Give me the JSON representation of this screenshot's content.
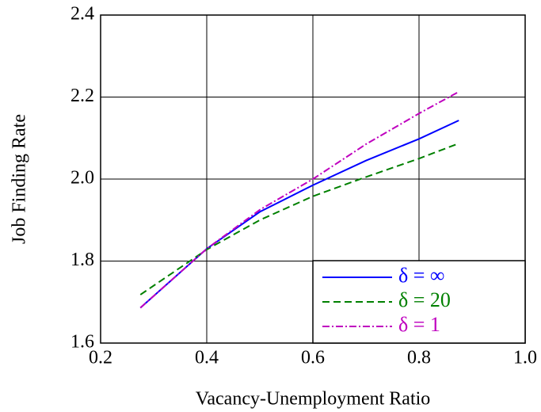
{
  "chart_data": {
    "type": "line",
    "xlabel": "Vacancy-Unemployment Ratio",
    "ylabel": "Job Finding Rate",
    "x": [
      0.275,
      0.4,
      0.5,
      0.6,
      0.7,
      0.8,
      0.875
    ],
    "series": [
      {
        "name": "δ = ∞",
        "color": "#0000ff",
        "linestyle": "solid",
        "values": [
          1.686,
          1.83,
          1.92,
          1.985,
          2.045,
          2.098,
          2.143
        ]
      },
      {
        "name": "δ = 20",
        "color": "#008000",
        "linestyle": "dashed",
        "values": [
          1.718,
          1.828,
          1.9,
          1.958,
          2.005,
          2.05,
          2.087
        ]
      },
      {
        "name": "δ = 1",
        "color": "#bf00bf",
        "linestyle": "dashdot",
        "values": [
          1.686,
          1.83,
          1.925,
          2.0,
          2.085,
          2.16,
          2.213
        ]
      }
    ],
    "xlim": [
      0.2,
      1.0
    ],
    "xticks": [
      0.2,
      0.4,
      0.6,
      0.8,
      {
        "value": 1.0,
        "label": "1.0"
      }
    ],
    "ylim": [
      1.6,
      2.4
    ],
    "yticks": [
      1.6,
      1.8,
      {
        "value": 2.0,
        "label": "2.0"
      },
      2.2,
      2.4
    ],
    "grid": true,
    "legend": "lower right"
  }
}
